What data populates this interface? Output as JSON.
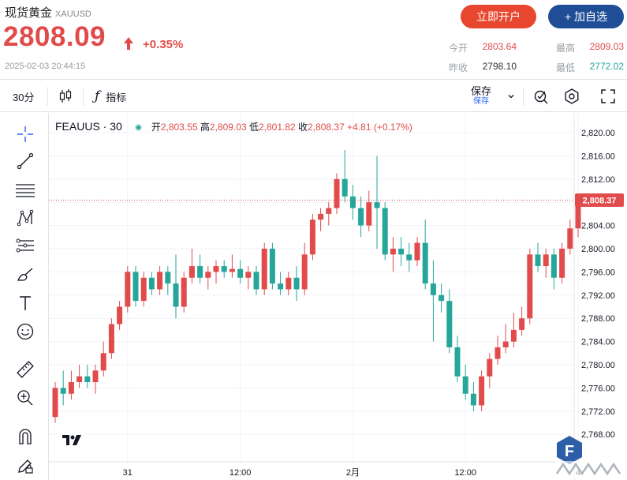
{
  "header": {
    "title": "现货黄金",
    "symbol_code": "XAUUSD",
    "price": "2808.09",
    "change_pct": "+0.35%",
    "timestamp": "2025-02-03 20:44:15",
    "open_account_button": "立即开户",
    "add_watchlist_button": "+ 加自选",
    "stats": {
      "open_label": "今开",
      "open_value": "2803.64",
      "high_label": "最高",
      "high_value": "2809.03",
      "prev_close_label": "昨收",
      "prev_close_value": "2798.10",
      "low_label": "最低",
      "low_value": "2772.02"
    },
    "colors": {
      "up": "#e14b4b",
      "down": "#26a69a",
      "open_button": "#e8472f",
      "watch_button": "#1f4e96"
    }
  },
  "toolbar": {
    "interval": "30分",
    "indicators_label": "指标",
    "save_label": "保存",
    "save_sub": "保存",
    "icons": [
      "candles-icon",
      "function-icon",
      "chevron-down-icon",
      "alert-icon",
      "settings-icon",
      "fullscreen-icon"
    ]
  },
  "tools": [
    "crosshair-icon",
    "trend-line-icon",
    "horizontal-lines-icon",
    "pattern-icon",
    "fib-icon",
    "brush-icon",
    "text-icon",
    "emoji-icon",
    "ruler-icon",
    "zoom-icon",
    "magnet-icon",
    "lock-pencil-icon"
  ],
  "legend": {
    "symbol": "FEAUUS · 30",
    "open_label": "开",
    "open_value": "2,803.55",
    "high_label": "高",
    "high_value": "2,809.03",
    "low_label": "低",
    "low_value": "2,801.82",
    "close_label": "收",
    "close_value": "2,808.37",
    "change": "+4.81 (+0.17%)"
  },
  "chart_data": {
    "type": "candlestick",
    "y_ticks": [
      "2,820.00",
      "2,816.00",
      "2,812.00",
      "2,808.00",
      "2,804.00",
      "2,800.00",
      "2,796.00",
      "2,792.00",
      "2,788.00",
      "2,784.00",
      "2,780.00",
      "2,776.00",
      "2,772.00",
      "2,768.00"
    ],
    "ylim": [
      2766,
      2822
    ],
    "x_ticks": [
      {
        "label": "31",
        "index": 9
      },
      {
        "label": "12:00",
        "index": 23
      },
      {
        "label": "2月",
        "index": 37
      },
      {
        "label": "12:00",
        "index": 51
      },
      {
        "label": "4",
        "index": 65
      }
    ],
    "last_price_label": "2,808.37",
    "last_price": 2808.37,
    "grid": true,
    "candles": [
      {
        "o": 2771.0,
        "h": 2777.0,
        "l": 2770.0,
        "c": 2776.0
      },
      {
        "o": 2776.0,
        "h": 2779.0,
        "l": 2773.0,
        "c": 2775.0
      },
      {
        "o": 2775.0,
        "h": 2779.0,
        "l": 2774.0,
        "c": 2777.0
      },
      {
        "o": 2777.0,
        "h": 2780.0,
        "l": 2776.0,
        "c": 2778.0
      },
      {
        "o": 2778.0,
        "h": 2780.0,
        "l": 2776.0,
        "c": 2777.0
      },
      {
        "o": 2777.0,
        "h": 2780.0,
        "l": 2775.0,
        "c": 2779.0
      },
      {
        "o": 2779.0,
        "h": 2784.0,
        "l": 2778.0,
        "c": 2782.0
      },
      {
        "o": 2782.0,
        "h": 2788.0,
        "l": 2781.0,
        "c": 2787.0
      },
      {
        "o": 2787.0,
        "h": 2791.0,
        "l": 2786.0,
        "c": 2790.0
      },
      {
        "o": 2790.0,
        "h": 2797.0,
        "l": 2789.0,
        "c": 2796.0
      },
      {
        "o": 2796.0,
        "h": 2797.0,
        "l": 2790.0,
        "c": 2791.0
      },
      {
        "o": 2791.0,
        "h": 2796.0,
        "l": 2790.0,
        "c": 2795.0
      },
      {
        "o": 2795.0,
        "h": 2796.0,
        "l": 2792.0,
        "c": 2793.0
      },
      {
        "o": 2793.0,
        "h": 2797.0,
        "l": 2792.0,
        "c": 2796.0
      },
      {
        "o": 2796.0,
        "h": 2797.0,
        "l": 2792.0,
        "c": 2794.0
      },
      {
        "o": 2794.0,
        "h": 2799.0,
        "l": 2788.0,
        "c": 2790.0
      },
      {
        "o": 2790.0,
        "h": 2796.0,
        "l": 2789.0,
        "c": 2795.0
      },
      {
        "o": 2795.0,
        "h": 2800.0,
        "l": 2794.0,
        "c": 2797.0
      },
      {
        "o": 2797.0,
        "h": 2799.0,
        "l": 2794.0,
        "c": 2795.0
      },
      {
        "o": 2795.0,
        "h": 2797.0,
        "l": 2793.0,
        "c": 2796.0
      },
      {
        "o": 2796.0,
        "h": 2798.0,
        "l": 2794.0,
        "c": 2797.0
      },
      {
        "o": 2797.0,
        "h": 2798.0,
        "l": 2795.0,
        "c": 2796.0
      },
      {
        "o": 2796.0,
        "h": 2799.0,
        "l": 2795.0,
        "c": 2796.5
      },
      {
        "o": 2796.5,
        "h": 2798.0,
        "l": 2794.0,
        "c": 2795.0
      },
      {
        "o": 2795.0,
        "h": 2797.0,
        "l": 2793.0,
        "c": 2796.0
      },
      {
        "o": 2796.0,
        "h": 2797.0,
        "l": 2792.0,
        "c": 2793.0
      },
      {
        "o": 2793.0,
        "h": 2801.0,
        "l": 2792.0,
        "c": 2800.0
      },
      {
        "o": 2800.0,
        "h": 2801.0,
        "l": 2793.0,
        "c": 2794.0
      },
      {
        "o": 2794.0,
        "h": 2796.0,
        "l": 2792.0,
        "c": 2793.0
      },
      {
        "o": 2793.0,
        "h": 2796.0,
        "l": 2792.0,
        "c": 2795.0
      },
      {
        "o": 2795.0,
        "h": 2797.0,
        "l": 2791.0,
        "c": 2793.0
      },
      {
        "o": 2793.0,
        "h": 2801.0,
        "l": 2792.0,
        "c": 2799.0
      },
      {
        "o": 2799.0,
        "h": 2806.0,
        "l": 2798.0,
        "c": 2805.0
      },
      {
        "o": 2805.0,
        "h": 2807.0,
        "l": 2803.0,
        "c": 2806.0
      },
      {
        "o": 2806.0,
        "h": 2808.0,
        "l": 2804.0,
        "c": 2807.0
      },
      {
        "o": 2807.0,
        "h": 2813.0,
        "l": 2806.0,
        "c": 2812.0
      },
      {
        "o": 2812.0,
        "h": 2817.0,
        "l": 2808.0,
        "c": 2809.0
      },
      {
        "o": 2809.0,
        "h": 2811.0,
        "l": 2805.0,
        "c": 2807.0
      },
      {
        "o": 2807.0,
        "h": 2809.0,
        "l": 2802.0,
        "c": 2804.0
      },
      {
        "o": 2804.0,
        "h": 2810.0,
        "l": 2803.0,
        "c": 2808.0
      },
      {
        "o": 2808.0,
        "h": 2816.0,
        "l": 2800.0,
        "c": 2807.0
      },
      {
        "o": 2807.0,
        "h": 2808.0,
        "l": 2798.0,
        "c": 2799.0
      },
      {
        "o": 2799.0,
        "h": 2802.0,
        "l": 2796.0,
        "c": 2800.0
      },
      {
        "o": 2800.0,
        "h": 2802.0,
        "l": 2797.0,
        "c": 2799.0
      },
      {
        "o": 2799.0,
        "h": 2801.0,
        "l": 2796.0,
        "c": 2798.0
      },
      {
        "o": 2798.0,
        "h": 2802.0,
        "l": 2797.0,
        "c": 2801.0
      },
      {
        "o": 2801.0,
        "h": 2805.0,
        "l": 2793.0,
        "c": 2794.0
      },
      {
        "o": 2794.0,
        "h": 2798.0,
        "l": 2784.0,
        "c": 2792.0
      },
      {
        "o": 2792.0,
        "h": 2794.0,
        "l": 2789.0,
        "c": 2791.0
      },
      {
        "o": 2791.0,
        "h": 2793.0,
        "l": 2782.0,
        "c": 2783.0
      },
      {
        "o": 2783.0,
        "h": 2785.0,
        "l": 2777.0,
        "c": 2778.0
      },
      {
        "o": 2778.0,
        "h": 2780.0,
        "l": 2774.0,
        "c": 2775.0
      },
      {
        "o": 2775.0,
        "h": 2777.0,
        "l": 2772.0,
        "c": 2773.0
      },
      {
        "o": 2773.0,
        "h": 2779.0,
        "l": 2772.0,
        "c": 2778.0
      },
      {
        "o": 2778.0,
        "h": 2782.0,
        "l": 2776.0,
        "c": 2781.0
      },
      {
        "o": 2781.0,
        "h": 2785.0,
        "l": 2780.0,
        "c": 2783.0
      },
      {
        "o": 2783.0,
        "h": 2787.0,
        "l": 2782.0,
        "c": 2784.0
      },
      {
        "o": 2784.0,
        "h": 2789.0,
        "l": 2783.0,
        "c": 2786.0
      },
      {
        "o": 2786.0,
        "h": 2790.0,
        "l": 2785.0,
        "c": 2788.0
      },
      {
        "o": 2788.0,
        "h": 2800.0,
        "l": 2787.0,
        "c": 2799.0
      },
      {
        "o": 2799.0,
        "h": 2801.0,
        "l": 2796.0,
        "c": 2797.0
      },
      {
        "o": 2797.0,
        "h": 2800.0,
        "l": 2795.0,
        "c": 2799.0
      },
      {
        "o": 2799.0,
        "h": 2800.0,
        "l": 2793.0,
        "c": 2795.0
      },
      {
        "o": 2795.0,
        "h": 2801.0,
        "l": 2794.0,
        "c": 2800.0
      },
      {
        "o": 2800.0,
        "h": 2805.0,
        "l": 2799.0,
        "c": 2803.5
      },
      {
        "o": 2803.5,
        "h": 2809.0,
        "l": 2802.0,
        "c": 2808.4
      }
    ]
  }
}
